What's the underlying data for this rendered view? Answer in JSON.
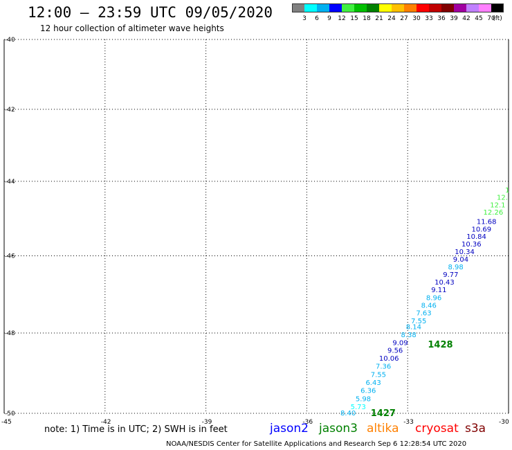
{
  "header": {
    "title": "12:00 – 23:59 UTC 09/05/2020",
    "subtitle": "12 hour collection of altimeter wave heights"
  },
  "colorbar": {
    "colors": [
      "#808080",
      "#00ffff",
      "#00b0f0",
      "#0000ff",
      "#40f040",
      "#00c000",
      "#008000",
      "#ffff00",
      "#ffc000",
      "#ff8000",
      "#ff0000",
      "#c00000",
      "#800000",
      "#a000a0",
      "#c080ff",
      "#ff80ff",
      "#000000"
    ],
    "labels": [
      "3",
      "6",
      "9",
      "12",
      "15",
      "18",
      "21",
      "24",
      "27",
      "30",
      "33",
      "36",
      "39",
      "42",
      "45",
      "70",
      "(ft)"
    ]
  },
  "map": {
    "lon_ticks": [
      "-45",
      "-42",
      "-39",
      "-36",
      "-33",
      "-30"
    ],
    "lat_ticks": [
      "-40",
      "-42",
      "-44",
      "-46",
      "-48",
      "-50"
    ],
    "pass_labels": [
      {
        "text": "1428",
        "lon": -32.4,
        "lat": -48.3
      },
      {
        "text": "1427",
        "lon": -34.1,
        "lat": -50.0
      }
    ],
    "swh_points": [
      {
        "v": "8.40",
        "lon": -35.0,
        "lat": -50.0,
        "c": "#00b0f0"
      },
      {
        "v": "5.73",
        "lon": -34.7,
        "lat": -49.85,
        "c": "#00ffff"
      },
      {
        "v": "5.98",
        "lon": -34.55,
        "lat": -49.65,
        "c": "#00b0f0"
      },
      {
        "v": "6.36",
        "lon": -34.4,
        "lat": -49.45,
        "c": "#00b0f0"
      },
      {
        "v": "6.43",
        "lon": -34.25,
        "lat": -49.25,
        "c": "#00b0f0"
      },
      {
        "v": "7.55",
        "lon": -34.1,
        "lat": -49.05,
        "c": "#00b0f0"
      },
      {
        "v": "7.36",
        "lon": -33.95,
        "lat": -48.85,
        "c": "#00b0f0"
      },
      {
        "v": "10.06",
        "lon": -33.85,
        "lat": -48.65,
        "c": "#0000c0"
      },
      {
        "v": "9.56",
        "lon": -33.6,
        "lat": -48.45,
        "c": "#0000c0"
      },
      {
        "v": "9.09",
        "lon": -33.45,
        "lat": -48.25,
        "c": "#0000c0"
      },
      {
        "v": "8.38",
        "lon": -33.2,
        "lat": -48.05,
        "c": "#00b0f0"
      },
      {
        "v": "8.14",
        "lon": -33.05,
        "lat": -47.85,
        "c": "#00b0f0"
      },
      {
        "v": "7.55",
        "lon": -32.9,
        "lat": -47.7,
        "c": "#00b0f0"
      },
      {
        "v": "7.63",
        "lon": -32.75,
        "lat": -47.5,
        "c": "#00b0f0"
      },
      {
        "v": "8.46",
        "lon": -32.6,
        "lat": -47.3,
        "c": "#00b0f0"
      },
      {
        "v": "8.96",
        "lon": -32.45,
        "lat": -47.1,
        "c": "#00b0f0"
      },
      {
        "v": "9.11",
        "lon": -32.3,
        "lat": -46.9,
        "c": "#0000c0"
      },
      {
        "v": "10.43",
        "lon": -32.2,
        "lat": -46.7,
        "c": "#0000c0"
      },
      {
        "v": "9.77",
        "lon": -31.95,
        "lat": -46.5,
        "c": "#0000c0"
      },
      {
        "v": "8.98",
        "lon": -31.8,
        "lat": -46.3,
        "c": "#00b0f0"
      },
      {
        "v": "9.04",
        "lon": -31.65,
        "lat": -46.1,
        "c": "#0000c0"
      },
      {
        "v": "10.34",
        "lon": -31.6,
        "lat": -45.9,
        "c": "#0000c0"
      },
      {
        "v": "10.36",
        "lon": -31.4,
        "lat": -45.7,
        "c": "#0000c0"
      },
      {
        "v": "10.84",
        "lon": -31.25,
        "lat": -45.5,
        "c": "#0000c0"
      },
      {
        "v": "10.69",
        "lon": -31.1,
        "lat": -45.3,
        "c": "#0000c0"
      },
      {
        "v": "11.68",
        "lon": -30.95,
        "lat": -45.1,
        "c": "#0000c0"
      },
      {
        "v": "12.26",
        "lon": -30.75,
        "lat": -44.85,
        "c": "#40f040"
      },
      {
        "v": "12.1",
        "lon": -30.55,
        "lat": -44.65,
        "c": "#40f040"
      },
      {
        "v": "12.",
        "lon": -30.35,
        "lat": -44.45,
        "c": "#40f040"
      },
      {
        "v": "1",
        "lon": -30.1,
        "lat": -44.25,
        "c": "#40f040"
      }
    ]
  },
  "note": "note: 1) Time is in UTC; 2) SWH is in feet",
  "legend": [
    {
      "label": "jason2",
      "color": "#0000ff"
    },
    {
      "label": "jason3",
      "color": "#008000"
    },
    {
      "label": "altika",
      "color": "#ff8000"
    },
    {
      "label": "cryosat",
      "color": "#ff0000"
    },
    {
      "label": "s3a",
      "color": "#800000"
    }
  ],
  "footer": "NOAA/NESDIS Center for Satellite Applications and Research    Sep  6 12:28:54 UTC 2020"
}
